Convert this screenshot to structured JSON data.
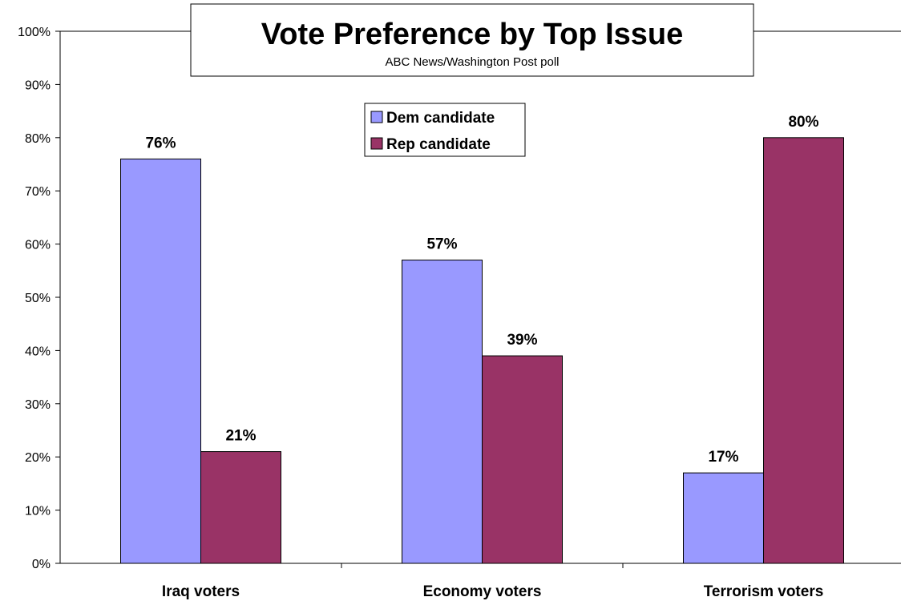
{
  "chart_data": {
    "type": "bar",
    "title": "Vote Preference by Top Issue",
    "subtitle": "ABC News/Washington Post poll",
    "categories": [
      "Iraq voters",
      "Economy voters",
      "Terrorism voters"
    ],
    "series": [
      {
        "name": "Dem candidate",
        "values": [
          76,
          57,
          17
        ],
        "color": "#9999ff"
      },
      {
        "name": "Rep candidate",
        "values": [
          21,
          39,
          80
        ],
        "color": "#993366"
      }
    ],
    "data_labels": [
      [
        "76%",
        "57%",
        "17%"
      ],
      [
        "21%",
        "39%",
        "80%"
      ]
    ],
    "y_ticks": [
      "0%",
      "10%",
      "20%",
      "30%",
      "40%",
      "50%",
      "60%",
      "70%",
      "80%",
      "90%",
      "100%"
    ],
    "ylim": [
      0,
      100
    ],
    "grid": false,
    "legend_position": "top-center"
  }
}
